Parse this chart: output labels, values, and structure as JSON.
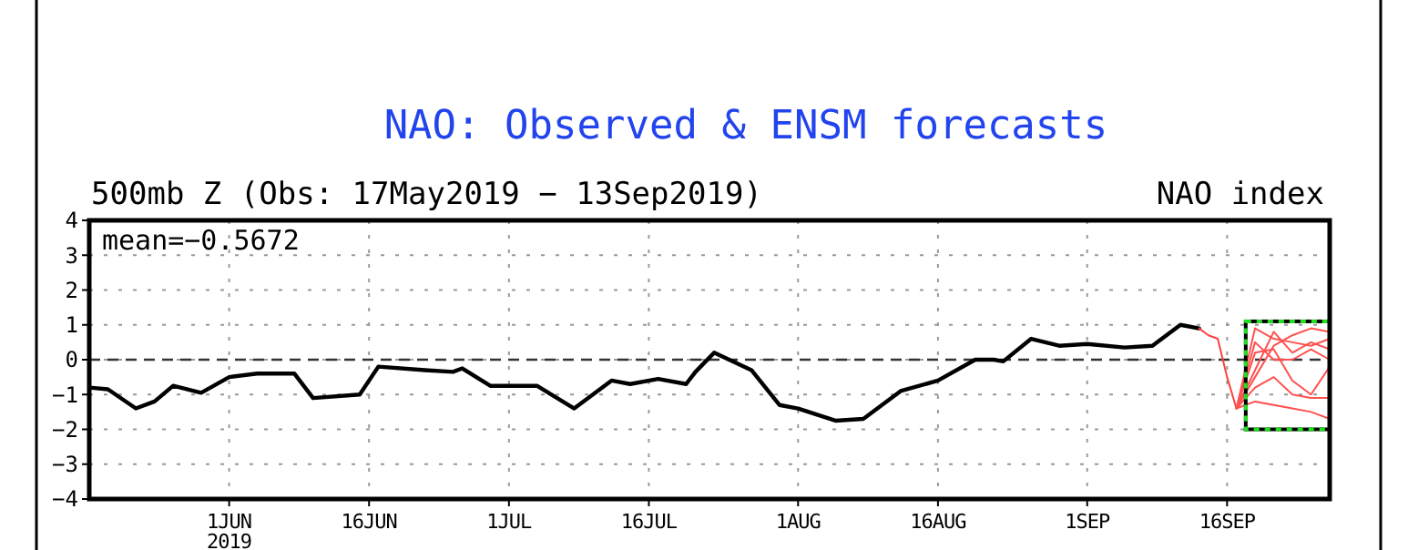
{
  "chart_data": {
    "type": "line",
    "title": "NAO: Observed & ENSM forecasts",
    "subtitle": "500mb Z (Obs: 17May2019 − 13Sep2019)",
    "ylabel": "NAO index",
    "annotations": [
      "mean=−0.5672"
    ],
    "xlim": [
      "2019-05-17",
      "2019-09-27"
    ],
    "xticks": [
      {
        "value": "2019-06-01",
        "label": "1JUN\n2019"
      },
      {
        "value": "2019-06-16",
        "label": "16JUN"
      },
      {
        "value": "2019-07-01",
        "label": "1JUL"
      },
      {
        "value": "2019-07-16",
        "label": "16JUL"
      },
      {
        "value": "2019-08-01",
        "label": "1AUG"
      },
      {
        "value": "2019-08-16",
        "label": "16AUG"
      },
      {
        "value": "2019-09-01",
        "label": "1SEP"
      },
      {
        "value": "2019-09-16",
        "label": "16SEP"
      }
    ],
    "ylim": [
      -4,
      4
    ],
    "yticks": [
      -4,
      -3,
      -2,
      -1,
      0,
      1,
      2,
      3,
      4
    ],
    "grid": true,
    "line_style": "solid",
    "ref_lines": [
      {
        "axis": "y",
        "value": 0,
        "color": "#333333",
        "line_style": "dashed"
      }
    ],
    "series": [
      {
        "color": "#000000",
        "x": [
          "2019-05-17",
          "2019-05-19",
          "2019-05-22",
          "2019-05-24",
          "2019-05-26",
          "2019-05-29",
          "2019-06-01",
          "2019-06-04",
          "2019-06-08",
          "2019-06-10",
          "2019-06-15",
          "2019-06-17",
          "2019-06-22",
          "2019-06-25",
          "2019-06-26",
          "2019-06-29",
          "2019-07-04",
          "2019-07-08",
          "2019-07-12",
          "2019-07-14",
          "2019-07-17",
          "2019-07-20",
          "2019-07-21",
          "2019-07-23",
          "2019-07-27",
          "2019-07-30",
          "2019-08-01",
          "2019-08-05",
          "2019-08-08",
          "2019-08-12",
          "2019-08-16",
          "2019-08-20",
          "2019-08-22",
          "2019-08-23",
          "2019-08-26",
          "2019-08-29",
          "2019-09-01",
          "2019-09-05",
          "2019-09-08",
          "2019-09-11",
          "2019-09-13"
        ],
        "values": [
          -0.8,
          -0.85,
          -1.4,
          -1.2,
          -0.75,
          -0.95,
          -0.5,
          -0.4,
          -0.4,
          -1.1,
          -1.0,
          -0.2,
          -0.3,
          -0.35,
          -0.25,
          -0.75,
          -0.75,
          -1.4,
          -0.6,
          -0.7,
          -0.55,
          -0.7,
          -0.35,
          0.2,
          -0.3,
          -1.3,
          -1.4,
          -1.75,
          -1.7,
          -0.9,
          -0.6,
          0.0,
          0.0,
          -0.05,
          0.6,
          0.4,
          0.45,
          0.35,
          0.4,
          1.0,
          0.9
        ]
      },
      {
        "color": "#ff4040",
        "x": [
          "2019-09-13",
          "2019-09-14",
          "2019-09-15",
          "2019-09-16",
          "2019-09-17"
        ],
        "values": [
          0.9,
          0.7,
          0.6,
          -0.5,
          -1.4
        ]
      },
      {
        "color": "#ff5050",
        "x": [
          "2019-09-17",
          "2019-09-19",
          "2019-09-21",
          "2019-09-23",
          "2019-09-25",
          "2019-09-27"
        ],
        "values": [
          -1.4,
          0.9,
          0.6,
          0.5,
          0.4,
          0.6
        ]
      },
      {
        "color": "#ff5050",
        "x": [
          "2019-09-17",
          "2019-09-19",
          "2019-09-21",
          "2019-09-23",
          "2019-09-25",
          "2019-09-27"
        ],
        "values": [
          -1.4,
          -0.3,
          0.8,
          0.2,
          0.5,
          0.3
        ]
      },
      {
        "color": "#ff5050",
        "x": [
          "2019-09-17",
          "2019-09-19",
          "2019-09-21",
          "2019-09-23",
          "2019-09-25",
          "2019-09-27"
        ],
        "values": [
          -1.4,
          -0.8,
          -0.5,
          -1.0,
          -1.1,
          -1.1
        ]
      },
      {
        "color": "#ff5050",
        "x": [
          "2019-09-17",
          "2019-09-19",
          "2019-09-21",
          "2019-09-23",
          "2019-09-25",
          "2019-09-27"
        ],
        "values": [
          -1.4,
          -1.2,
          -1.3,
          -1.4,
          -1.5,
          -1.7
        ]
      },
      {
        "color": "#ff5050",
        "x": [
          "2019-09-17",
          "2019-09-19",
          "2019-09-21",
          "2019-09-23",
          "2019-09-25",
          "2019-09-27"
        ],
        "values": [
          -1.4,
          0.2,
          0.3,
          -0.6,
          -1.0,
          -0.2
        ]
      },
      {
        "color": "#ff5050",
        "x": [
          "2019-09-17",
          "2019-09-19",
          "2019-09-21",
          "2019-09-23",
          "2019-09-25",
          "2019-09-27"
        ],
        "values": [
          -1.4,
          0.5,
          0.0,
          0.0,
          0.3,
          0.0
        ]
      },
      {
        "color": "#ff5050",
        "x": [
          "2019-09-17",
          "2019-09-19",
          "2019-09-21",
          "2019-09-23",
          "2019-09-25",
          "2019-09-27"
        ],
        "values": [
          -1.4,
          -0.5,
          0.4,
          0.7,
          0.9,
          0.8
        ]
      }
    ]
  }
}
